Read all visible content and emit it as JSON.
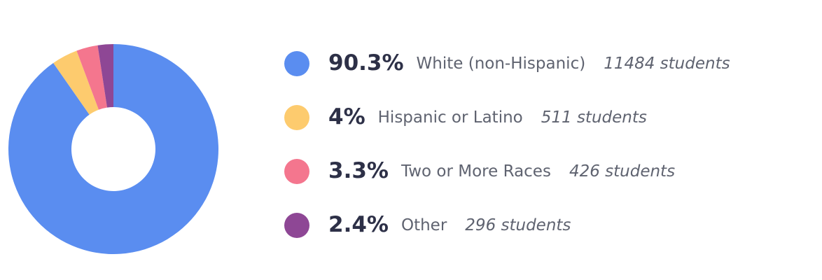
{
  "chart_data": {
    "type": "donut",
    "categories": [
      "White (non-Hispanic)",
      "Hispanic or Latino",
      "Two or More Races",
      "Other"
    ],
    "values": [
      90.3,
      4,
      3.3,
      2.4
    ],
    "value_labels": [
      "90.3%",
      "4%",
      "3.3%",
      "2.4%"
    ],
    "count_labels": [
      "11484 students",
      "511 students",
      "426 students",
      "296 students"
    ],
    "colors": [
      "#5a8df0",
      "#fdcb6e",
      "#f4768e",
      "#8e4795"
    ]
  }
}
